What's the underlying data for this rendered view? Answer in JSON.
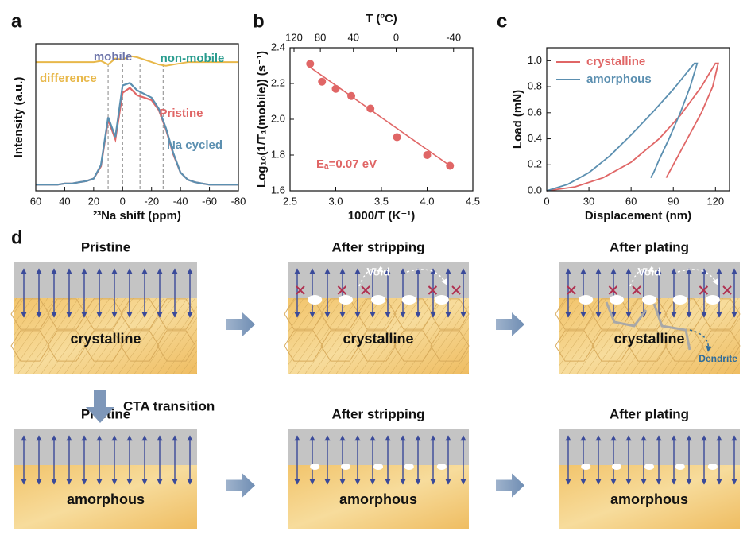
{
  "chart_data": [
    {
      "type": "spectrum",
      "label": "a",
      "x_label": "²³Na shift (ppm)",
      "y_label": "Intensity (a.u.)",
      "xlim": [
        60,
        -80
      ],
      "xticks": [
        60,
        40,
        20,
        0,
        -20,
        -40,
        -60,
        -80
      ],
      "ylim": [
        0,
        1.2
      ],
      "x": [
        60,
        55,
        50,
        45,
        40,
        35,
        30,
        25,
        20,
        15,
        10,
        5,
        0,
        -5,
        -10,
        -15,
        -20,
        -25,
        -30,
        -35,
        -40,
        -45,
        -50,
        -55,
        -60,
        -65,
        -70,
        -75,
        -80
      ],
      "series": [
        {
          "name": "Pristine",
          "color": "#e06666",
          "values": [
            0.05,
            0.05,
            0.05,
            0.05,
            0.06,
            0.06,
            0.07,
            0.08,
            0.1,
            0.2,
            0.58,
            0.42,
            0.8,
            0.84,
            0.78,
            0.76,
            0.74,
            0.66,
            0.5,
            0.3,
            0.15,
            0.09,
            0.07,
            0.06,
            0.05,
            0.05,
            0.05,
            0.05,
            0.05
          ]
        },
        {
          "name": "Na cycled",
          "color": "#5b8fb0",
          "values": [
            0.05,
            0.05,
            0.05,
            0.05,
            0.06,
            0.06,
            0.07,
            0.08,
            0.1,
            0.21,
            0.6,
            0.44,
            0.86,
            0.88,
            0.82,
            0.79,
            0.76,
            0.67,
            0.51,
            0.31,
            0.15,
            0.09,
            0.07,
            0.06,
            0.05,
            0.05,
            0.05,
            0.05,
            0.05
          ]
        },
        {
          "name": "difference",
          "color": "#e8b84a",
          "values": [
            1.05,
            1.05,
            1.05,
            1.05,
            1.05,
            1.05,
            1.05,
            1.05,
            1.05,
            1.06,
            1.03,
            1.08,
            1.07,
            1.1,
            1.09,
            1.07,
            1.05,
            1.03,
            1.02,
            1.03,
            1.04,
            1.05,
            1.05,
            1.05,
            1.05,
            1.05,
            1.05,
            1.05,
            1.05
          ]
        }
      ],
      "guide_lines": [
        10,
        0,
        -12,
        -28
      ],
      "annotations": [
        "mobile",
        "non-mobile"
      ]
    },
    {
      "type": "scatter",
      "label": "b",
      "x_label": "1000/T (K⁻¹)",
      "y_label": "Log₁₀(1/T₁(mobile)) (s⁻¹)",
      "x2_label": "T (ºC)",
      "xlim": [
        2.5,
        4.5
      ],
      "xticks": [
        2.5,
        {
          "value": 3,
          "label": "3.0"
        },
        3.5,
        {
          "value": 4,
          "label": "4.0"
        },
        4.5
      ],
      "ylim": [
        1.6,
        2.4
      ],
      "yticks": [
        1.6,
        1.8,
        {
          "value": 2,
          "label": "2.0"
        },
        2.2,
        2.4
      ],
      "x2ticks": [
        120,
        80,
        40,
        0,
        -40
      ],
      "x": [
        2.72,
        2.85,
        3.0,
        3.17,
        3.38,
        3.67,
        4.0,
        4.25
      ],
      "values": [
        2.31,
        2.21,
        2.17,
        2.13,
        2.06,
        1.9,
        1.8,
        1.74
      ],
      "color": "#e06666",
      "fit": {
        "x": [
          2.72,
          4.25
        ],
        "values": [
          2.29,
          1.74
        ]
      },
      "annotation": "Eₐ=0.07 eV"
    },
    {
      "type": "line",
      "label": "c",
      "x_label": "Displacement (nm)",
      "y_label": "Load (mN)",
      "xlim": [
        0,
        130
      ],
      "xticks": [
        0,
        30,
        60,
        90,
        120
      ],
      "ylim": [
        0,
        1.1
      ],
      "yticks": [
        {
          "value": 0,
          "label": "0.0"
        },
        0.2,
        0.4,
        0.6,
        0.8,
        {
          "value": 1,
          "label": "1.0"
        }
      ],
      "series": [
        {
          "name": "crystalline",
          "color": "#e06666",
          "x": [
            0,
            20,
            40,
            60,
            80,
            95,
            110,
            120,
            122,
            118,
            110,
            100,
            92,
            87,
            85
          ],
          "values": [
            0,
            0.03,
            0.1,
            0.22,
            0.4,
            0.58,
            0.8,
            0.98,
            0.98,
            0.8,
            0.6,
            0.4,
            0.24,
            0.14,
            0.1
          ]
        },
        {
          "name": "amorphous",
          "color": "#5b8fb0",
          "x": [
            0,
            15,
            30,
            45,
            60,
            75,
            90,
            105,
            107,
            102,
            95,
            87,
            80,
            76,
            74
          ],
          "values": [
            0,
            0.05,
            0.14,
            0.27,
            0.43,
            0.6,
            0.78,
            0.98,
            0.98,
            0.8,
            0.6,
            0.4,
            0.24,
            0.14,
            0.1
          ]
        }
      ],
      "legend": "upper left"
    }
  ],
  "schematic": {
    "label": "d",
    "transition": "CTA transition",
    "rows": [
      {
        "panels": [
          {
            "title": "Pristine",
            "material": "crystalline"
          },
          {
            "title": "After stripping",
            "material": "crystalline",
            "annotations": [
              "Void"
            ]
          },
          {
            "title": "After plating",
            "material": "crystalline",
            "annotations": [
              "Void",
              "Dendrite"
            ]
          }
        ]
      },
      {
        "panels": [
          {
            "title": "Pristine",
            "material": "amorphous"
          },
          {
            "title": "After stripping",
            "material": "amorphous"
          },
          {
            "title": "After plating",
            "material": "amorphous"
          }
        ]
      }
    ]
  }
}
